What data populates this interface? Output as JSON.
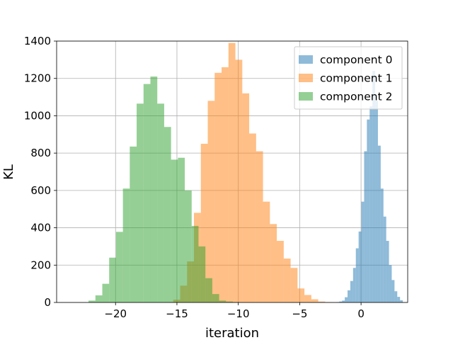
{
  "chart_data": {
    "type": "histogram",
    "title": "",
    "xlabel": "iteration",
    "ylabel": "KL",
    "xlim": [
      -24.8,
      3.8
    ],
    "ylim": [
      0,
      1400
    ],
    "grid": true,
    "legend_placement": "top-right",
    "x_ticks": [
      -20,
      -15,
      -10,
      -5,
      0
    ],
    "x_tick_labels": [
      "−20",
      "−15",
      "−10",
      "−5",
      "0"
    ],
    "y_ticks": [
      0,
      200,
      400,
      600,
      800,
      1000,
      1200,
      1400
    ],
    "y_tick_labels": [
      "0",
      "200",
      "400",
      "600",
      "800",
      "1000",
      "1200",
      "1400"
    ],
    "series": [
      {
        "name": "component 0",
        "color": "#1f77b4",
        "opacity": 0.5,
        "bin_start": -2.0,
        "bin_width": 0.225,
        "counts": [
          2,
          5,
          10,
          28,
          65,
          115,
          185,
          290,
          380,
          540,
          810,
          980,
          1050,
          1240,
          1080,
          840,
          610,
          460,
          330,
          200,
          120,
          60,
          30,
          12
        ]
      },
      {
        "name": "component 1",
        "color": "#ff7f0e",
        "opacity": 0.5,
        "bin_start": -15.3,
        "bin_width": 0.5625,
        "counts": [
          15,
          90,
          220,
          480,
          850,
          1080,
          1230,
          1260,
          1390,
          1300,
          1120,
          905,
          810,
          540,
          420,
          330,
          235,
          185,
          75,
          40,
          17,
          5,
          2
        ]
      },
      {
        "name": "component 2",
        "color": "#2ca02c",
        "opacity": 0.5,
        "bin_start": -22.2,
        "bin_width": 0.56,
        "counts": [
          10,
          38,
          100,
          240,
          378,
          610,
          835,
          1065,
          1170,
          1210,
          1065,
          940,
          765,
          775,
          600,
          410,
          300,
          130,
          45,
          10,
          5,
          2
        ]
      }
    ]
  }
}
